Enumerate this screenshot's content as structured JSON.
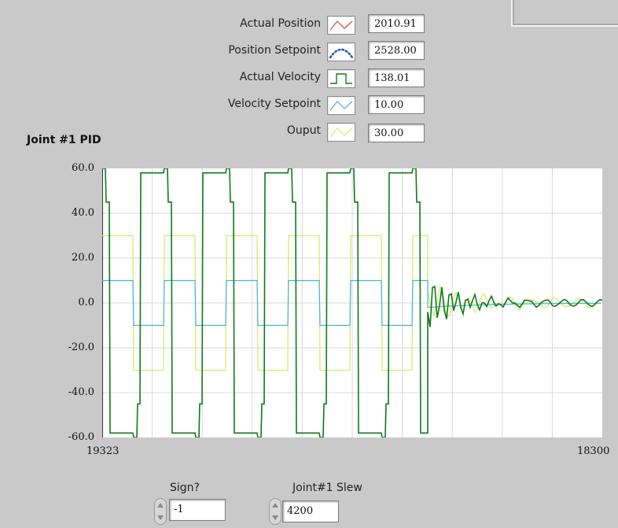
{
  "legend": {
    "items": [
      {
        "label": "Actual Position",
        "value": "2010.91",
        "color": "#e04848",
        "style": "zigzag"
      },
      {
        "label": "Position Setpoint",
        "value": "2528.00",
        "color": "#1f5fb8",
        "style": "dotted-arc"
      },
      {
        "label": "Actual Velocity",
        "value": "138.01",
        "color": "#0f7a1a",
        "style": "square-step"
      },
      {
        "label": "Velocity Setpoint",
        "value": "10.00",
        "color": "#49b3d6",
        "style": "zigzag"
      },
      {
        "label": "Ouput",
        "value": "30.00",
        "color": "#d4ee6a",
        "style": "zigzag"
      }
    ]
  },
  "chart_data": {
    "type": "line",
    "title": "Joint #1 PID",
    "x_tick_labels": [
      "19323",
      "18300"
    ],
    "y_tick_labels": [
      "60.0",
      "40.0",
      "20.0",
      "0.0",
      "-20.0",
      "-40.0",
      "-60.0"
    ],
    "ylim": [
      -60,
      60
    ],
    "grid": true,
    "series": [
      {
        "name": "Actual Velocity",
        "color": "#0f7a1a",
        "description_values": {
          "oscillation_amplitude": 60,
          "settled_value": 0
        }
      },
      {
        "name": "Velocity Setpoint",
        "color": "#49b3d6",
        "description_values": {
          "high": 10,
          "low": -10,
          "settled_value": 0
        }
      },
      {
        "name": "Ouput",
        "color": "#d4ee6a",
        "description_values": {
          "high": 30,
          "low": -30,
          "settled_value": 0
        }
      }
    ]
  },
  "controls": {
    "sign": {
      "label": "Sign?",
      "value": "-1"
    },
    "slew": {
      "label": "Joint#1 Slew",
      "value": "4200"
    }
  }
}
